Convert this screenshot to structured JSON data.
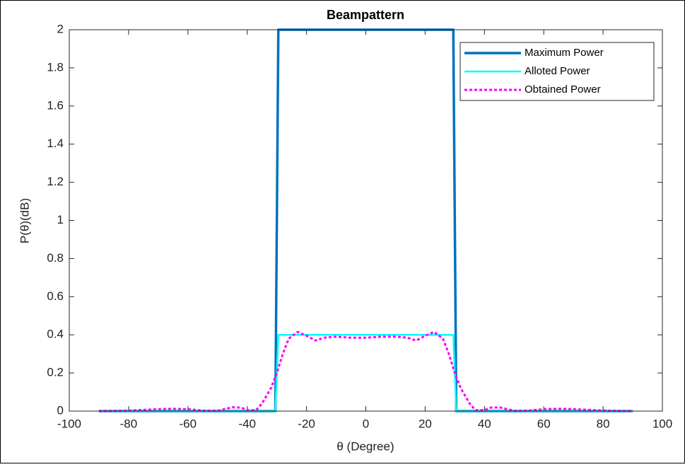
{
  "chart_data": {
    "type": "line",
    "title": "Beampattern",
    "x_label": "θ (Degree)",
    "y_label": "P(θ)(dB)",
    "xlim": [
      -100,
      100
    ],
    "xticks": [
      -100,
      -80,
      -60,
      -40,
      -20,
      0,
      20,
      40,
      60,
      80,
      100
    ],
    "ylim": [
      0,
      2
    ],
    "yticks": [
      0,
      0.2,
      0.4,
      0.6,
      0.8,
      1,
      1.2,
      1.4,
      1.6,
      1.8,
      2
    ],
    "grid": false,
    "legend": "top-right",
    "series": [
      {
        "name": "Maximum Power",
        "color": "#0072BD",
        "style": "solid",
        "x": [
          -90,
          -30.5,
          -29.5,
          29.5,
          30.5,
          90
        ],
        "values": [
          0,
          0,
          2,
          2,
          0,
          0
        ]
      },
      {
        "name": "Alloted Power",
        "color": "#00FFFF",
        "style": "solid",
        "x": [
          -90,
          -30.5,
          -29.5,
          29.5,
          30.5,
          90
        ],
        "values": [
          0,
          0,
          0.4,
          0.4,
          0,
          0
        ]
      },
      {
        "name": "Obtained Power",
        "color": "#FF00FF",
        "style": "dotted",
        "x": [
          -90,
          -80,
          -70,
          -65,
          -60,
          -55,
          -50,
          -45,
          -42,
          -40,
          -37,
          -35,
          -32,
          -30,
          -28,
          -26,
          -23,
          -20,
          -17,
          -14,
          -10,
          -5,
          0,
          5,
          10,
          14,
          17,
          20,
          23,
          26,
          28,
          30,
          32,
          35,
          37,
          40,
          42,
          45,
          50,
          55,
          60,
          65,
          70,
          80,
          90
        ],
        "values": [
          0,
          0.003,
          0.01,
          0.012,
          0.01,
          0.003,
          0.002,
          0.02,
          0.018,
          0.005,
          0.005,
          0.04,
          0.12,
          0.2,
          0.3,
          0.38,
          0.415,
          0.395,
          0.37,
          0.385,
          0.39,
          0.385,
          0.385,
          0.39,
          0.39,
          0.385,
          0.37,
          0.395,
          0.415,
          0.38,
          0.3,
          0.2,
          0.12,
          0.04,
          0.005,
          0.005,
          0.018,
          0.02,
          0.002,
          0.003,
          0.01,
          0.012,
          0.01,
          0.003,
          0
        ]
      }
    ]
  }
}
